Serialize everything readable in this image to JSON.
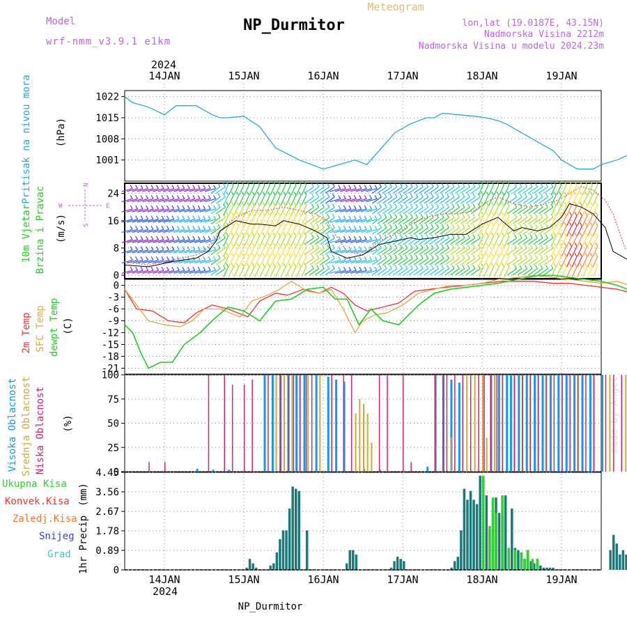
{
  "header": {
    "model_label": "Model",
    "model_name": "wrf-nmm_v3.9.1 e1km",
    "station": "NP_Durmitor",
    "product": "Meteogram",
    "lonlat": "lon,lat (19.0187E, 43.15N)",
    "elevation": "Nadmorska Visina 2212m",
    "model_elevation": "Nadmorska Visina u modelu 2024.23m"
  },
  "footer": {
    "station": "NP_Durmitor",
    "credit": "made by Angel"
  },
  "time_axis": {
    "year": "2024",
    "days": [
      "14JAN",
      "15JAN",
      "16JAN",
      "17JAN",
      "18JAN",
      "19JAN"
    ]
  },
  "colors": {
    "pressure": "#22aadd",
    "t2m": "#ee3333",
    "tsfc": "#ddaa44",
    "dewpt": "#22cc22",
    "wind_speed": "#000000",
    "gust": "#ee6666",
    "high_cloud": "#1199ee",
    "mid_cloud": "#ccaa33",
    "low_cloud": "#cc2277",
    "precip_total": "#33cc33",
    "precip_conv": "#ee3333",
    "precip_frozen": "#ee7733",
    "snow": "#3344cc",
    "hail": "#33cccc",
    "precip_main": "#1a7a7a"
  },
  "chart_data": [
    {
      "type": "line",
      "panel": "pressure",
      "ylabel": "Pritisak na nivou mora",
      "unit": "(hPa)",
      "yticks": [
        "1022",
        "1015",
        "1008",
        "1001"
      ],
      "ylim": [
        994,
        1024
      ],
      "series": [
        {
          "x": [
            0,
            0.1,
            0.3,
            0.5,
            0.65,
            0.9,
            1.1,
            1.2,
            1.3,
            1.5,
            1.7,
            1.9,
            2.05,
            2.2,
            2.5,
            2.7,
            2.9,
            3.05,
            3.2,
            3.4,
            3.6,
            3.8,
            3.9,
            4.0,
            4.2,
            4.4,
            4.55,
            4.7,
            4.8,
            5.0,
            5.2,
            5.4,
            5.5,
            5.7,
            5.9,
            6.0,
            6.2,
            6.45,
            6.55
          ],
          "values": [
            1022,
            1020,
            1018.5,
            1016,
            1019,
            1019,
            1016,
            1015,
            1015,
            1015.5,
            1012,
            1005,
            1003,
            1001,
            998,
            999.5,
            1001,
            999.5,
            1004,
            1010,
            1013,
            1015,
            1015,
            1016.5,
            1016,
            1015.5,
            1015,
            1014,
            1013,
            1010,
            1007,
            1004,
            1001,
            998,
            998,
            999.5,
            1001,
            1004,
            1007
          ]
        }
      ]
    },
    {
      "type": "line",
      "panel": "wind",
      "ylabel": "10m Vjetar Brzina i Pravac",
      "unit": "(m/s)",
      "yticks": [
        "24",
        "16",
        "8",
        "0"
      ],
      "ylim": [
        -1,
        27
      ],
      "compass": {
        "n": "N",
        "s": "S",
        "e": "E",
        "w": "W"
      },
      "speed": {
        "x": [
          0,
          0.3,
          0.6,
          0.9,
          1.05,
          1.15,
          1.2,
          1.4,
          1.6,
          1.7,
          1.9,
          2.0,
          2.2,
          2.4,
          2.55,
          2.6,
          2.8,
          3.0,
          3.2,
          3.4,
          3.6,
          3.7,
          3.9,
          4.1,
          4.3,
          4.5,
          4.7,
          4.9,
          5.0,
          5.2,
          5.35,
          5.5,
          5.6,
          5.75,
          5.9,
          6.05,
          6.15,
          6.3,
          6.55
        ],
        "values": [
          3,
          2.5,
          4,
          5,
          7,
          10,
          13,
          16,
          15,
          15,
          14.5,
          16,
          15,
          13,
          11,
          7,
          5,
          6,
          9,
          10,
          11,
          10.5,
          11,
          12,
          12,
          15,
          17,
          13,
          14,
          13,
          14,
          17,
          21,
          20,
          18,
          14,
          7,
          5,
          2
        ]
      },
      "gust": {
        "x": [
          0,
          0.3,
          0.5,
          0.7,
          0.9,
          1.0,
          1.1,
          1.25,
          1.4,
          1.6,
          1.8,
          2.0,
          2.2,
          2.4,
          2.55,
          2.65,
          2.8,
          3.0,
          3.2,
          3.4,
          3.6,
          3.8,
          4.0,
          4.2,
          4.4,
          4.6,
          4.7,
          4.9,
          5.1,
          5.3,
          5.45,
          5.6,
          5.75,
          5.9,
          6.05,
          6.15,
          6.3,
          6.55
        ],
        "values": [
          4,
          3,
          4,
          5,
          6,
          7,
          10,
          14,
          17,
          19,
          19,
          20,
          19,
          18,
          16,
          12,
          7,
          6,
          10,
          12,
          15,
          17,
          18,
          18,
          19,
          22,
          23,
          21,
          20,
          21,
          22,
          24,
          26,
          25,
          22,
          18,
          8,
          4
        ]
      },
      "barb_colorscale": [
        "#8822cc",
        "#2255ee",
        "#22aaee",
        "#22cccc",
        "#22cc44",
        "#aadd22",
        "#ffdd22",
        "#ff8822",
        "#ee2222"
      ]
    },
    {
      "type": "line",
      "panel": "temperature",
      "ylabel": [
        "2m Temp",
        "SFC Temp",
        "dewpt Temp"
      ],
      "unit": "(C)",
      "yticks": [
        "0",
        "-3",
        "-6",
        "-9",
        "-12",
        "-15",
        "-18",
        "-21"
      ],
      "ylim": [
        -22.5,
        1.5
      ],
      "series": [
        {
          "name": "2m Temp",
          "x": [
            0,
            0.15,
            0.35,
            0.55,
            0.75,
            0.9,
            1.1,
            1.3,
            1.55,
            1.7,
            1.9,
            2.05,
            2.25,
            2.45,
            2.6,
            2.75,
            2.9,
            3.05,
            3.25,
            3.45,
            3.65,
            3.85,
            4.05,
            4.3,
            4.5,
            4.75,
            4.95,
            5.15,
            5.4,
            5.6,
            5.8,
            6.0,
            6.2,
            6.4,
            6.55
          ],
          "values": [
            -1,
            -6,
            -6.5,
            -9,
            -9.5,
            -7,
            -5,
            -6,
            -8,
            -4,
            -2,
            -2.5,
            -1,
            -2,
            -0.5,
            -2,
            -5,
            -6.5,
            -5.5,
            -4.5,
            -1.5,
            -1,
            -0.5,
            0,
            0.5,
            1,
            1,
            1,
            0.5,
            0.5,
            0,
            -0.5,
            -1,
            -2,
            -3
          ]
        },
        {
          "name": "SFC Temp",
          "x": [
            0,
            0.15,
            0.3,
            0.5,
            0.7,
            0.85,
            1.0,
            1.2,
            1.45,
            1.6,
            1.8,
            1.95,
            2.1,
            2.3,
            2.45,
            2.6,
            2.75,
            2.9,
            3.0,
            3.15,
            3.3,
            3.5,
            3.7,
            3.9,
            4.1,
            4.3,
            4.5,
            4.7,
            4.95,
            5.15,
            5.4,
            5.6,
            5.8,
            6.0,
            6.2,
            6.35,
            6.55
          ],
          "values": [
            -1,
            -5,
            -9,
            -10,
            -10.5,
            -9,
            -6,
            -6,
            -8,
            -4,
            -2.5,
            -1,
            1,
            -1.5,
            -2,
            -1,
            -6,
            -12,
            -9,
            -7.5,
            -7,
            -5,
            -2,
            -1,
            0,
            0,
            0.5,
            1.5,
            2,
            2.5,
            2,
            1.5,
            1,
            0.5,
            1,
            0,
            -1
          ]
        },
        {
          "name": "dewpt Temp",
          "x": [
            0,
            0.1,
            0.2,
            0.3,
            0.45,
            0.6,
            0.75,
            0.95,
            1.1,
            1.3,
            1.5,
            1.7,
            1.9,
            2.1,
            2.3,
            2.5,
            2.65,
            2.8,
            2.95,
            3.1,
            3.25,
            3.45,
            3.7,
            3.9,
            4.1,
            4.3,
            4.5,
            4.7,
            4.95,
            5.2,
            5.4,
            5.6,
            5.8,
            6.0,
            6.2,
            6.4,
            6.55
          ],
          "values": [
            -10,
            -12,
            -17,
            -21,
            -19.5,
            -19.5,
            -15,
            -12,
            -9,
            -5.5,
            -6.5,
            -9,
            -4,
            -3.5,
            -1,
            -0.5,
            -3.5,
            -3.5,
            -10,
            -6,
            -9,
            -10,
            -5,
            -2,
            -1,
            -0.5,
            0,
            0.5,
            1.5,
            2.5,
            2.5,
            2,
            1.5,
            1,
            0,
            -1.5,
            -4
          ]
        }
      ]
    },
    {
      "type": "bar",
      "panel": "cloud",
      "ylabel": [
        "Visoka Oblacnost",
        "Srednja Oblacnost",
        "Niska Oblacnost"
      ],
      "unit": "(%)",
      "yticks": [
        "100",
        "75",
        "50",
        "25",
        "0"
      ],
      "ylim": [
        0,
        100
      ],
      "series": [
        {
          "name": "Visoka Oblacnost",
          "x": [
            0.9,
            1.1,
            1.3,
            1.75,
            1.85,
            1.95,
            2.05,
            2.15,
            2.25,
            2.4,
            2.55,
            2.65,
            2.75,
            3.0,
            3.2,
            3.8,
            3.9,
            4.0,
            4.1,
            4.2,
            4.6,
            4.7,
            4.8,
            4.85,
            4.95,
            5.05,
            5.15,
            5.25,
            5.35,
            5.45,
            5.55,
            5.65,
            5.75,
            5.85,
            6.0
          ],
          "values": [
            3,
            2,
            2,
            100,
            100,
            100,
            100,
            100,
            100,
            100,
            98,
            95,
            93,
            3,
            2,
            5,
            100,
            100,
            95,
            92,
            100,
            100,
            100,
            100,
            100,
            100,
            100,
            100,
            100,
            100,
            100,
            100,
            100,
            100,
            100
          ]
        },
        {
          "name": "Srednja Oblacnost",
          "x": [
            1.9,
            2.0,
            2.1,
            2.2,
            2.3,
            2.45,
            2.9,
            2.95,
            3.0,
            3.05,
            3.1,
            4.1,
            4.3,
            4.4,
            4.5,
            4.55,
            4.65,
            4.75,
            4.9,
            5.0,
            5.1,
            5.2,
            5.3,
            5.5,
            5.7,
            5.9,
            6.1,
            6.3,
            6.5
          ],
          "values": [
            100,
            100,
            100,
            100,
            100,
            100,
            60,
            75,
            70,
            60,
            30,
            35,
            100,
            100,
            100,
            35,
            100,
            100,
            100,
            100,
            100,
            100,
            100,
            100,
            100,
            100,
            100,
            100,
            100
          ]
        },
        {
          "name": "Niska Oblacnost",
          "x": [
            0.3,
            0.5,
            1.05,
            1.25,
            1.35,
            1.5,
            1.6,
            1.8,
            1.95,
            2.05,
            2.12,
            2.2,
            2.28,
            2.35,
            2.6,
            2.75,
            2.85,
            3.2,
            3.3,
            3.5,
            3.6,
            3.9,
            4.0,
            4.05,
            4.15,
            4.25,
            4.35,
            4.45,
            4.52,
            4.6,
            4.68,
            4.75,
            4.9,
            5.0,
            5.1,
            5.2,
            5.3,
            5.4,
            5.5,
            5.6,
            5.7,
            5.8,
            5.9,
            6.05,
            6.15,
            6.25,
            6.35,
            6.45
          ],
          "values": [
            10,
            10,
            100,
            100,
            90,
            90,
            95,
            100,
            100,
            100,
            100,
            100,
            100,
            100,
            100,
            100,
            100,
            100,
            100,
            100,
            10,
            100,
            100,
            100,
            100,
            100,
            100,
            100,
            100,
            100,
            100,
            100,
            100,
            100,
            100,
            100,
            100,
            100,
            100,
            100,
            100,
            100,
            100,
            100,
            100,
            100,
            100,
            100
          ]
        }
      ]
    },
    {
      "type": "bar",
      "panel": "precip",
      "ylabel": "1hr Precip",
      "unit": "(mm)",
      "legend": [
        "Ukupna Kisa",
        "Konvek.Kisa",
        "Zaledj.Kisa",
        "Snijeg",
        "Grad"
      ],
      "yticks": [
        "4.45",
        "3.56",
        "2.67",
        "1.78",
        "0.89",
        "0"
      ],
      "ylim": [
        0,
        4.45
      ],
      "series": [
        {
          "name": "1hr Precip",
          "x": [
            1.52,
            1.56,
            1.6,
            1.64,
            1.82,
            1.86,
            1.9,
            1.94,
            1.98,
            2.02,
            2.06,
            2.1,
            2.14,
            2.18,
            2.28,
            2.78,
            2.82,
            2.86,
            2.9,
            3.34,
            3.38,
            3.42,
            3.46,
            3.5,
            4.1,
            4.14,
            4.18,
            4.22,
            4.26,
            4.3,
            4.34,
            4.38,
            4.42,
            4.46,
            4.5,
            4.54,
            4.58,
            4.62,
            4.66,
            4.7,
            4.74,
            4.78,
            4.82,
            4.86,
            4.9,
            4.94,
            4.98,
            5.02,
            5.06,
            5.1,
            5.14,
            5.18,
            5.22,
            5.26,
            5.3,
            5.34,
            5.38,
            6.1,
            6.14,
            6.18,
            6.22,
            6.26,
            6.3,
            6.34,
            6.38,
            6.42,
            6.46,
            6.5
          ],
          "values": [
            0.1,
            0.5,
            0.3,
            0.1,
            0.2,
            0.3,
            0.8,
            1.4,
            1.8,
            1.8,
            2.8,
            3.8,
            3.7,
            3.6,
            1.8,
            0.3,
            0.9,
            0.9,
            0.7,
            0.1,
            0.4,
            0.6,
            0.5,
            0.4,
            0.1,
            0.4,
            0.6,
            1.8,
            3.7,
            3.2,
            3.6,
            3.2,
            3.0,
            4.3,
            2.6,
            3.4,
            1.8,
            2.0,
            3.3,
            2.6,
            2.5,
            3.4,
            1.0,
            2.8,
            1.0,
            0.9,
            0.8,
            0.5,
            0.9,
            0.4,
            0.3,
            0.5,
            0.2,
            0.1,
            0.1,
            0.1,
            0.1,
            0.9,
            1.6,
            1.2,
            0.7,
            0.9,
            0.7,
            0.2,
            0.9,
            0.1,
            1.6,
            0.4
          ]
        },
        {
          "name": "Ukupna Kisa",
          "x": [
            4.5,
            4.58,
            4.62,
            4.66,
            4.74,
            4.82,
            4.9,
            4.98,
            5.02,
            5.06,
            5.12,
            5.18
          ],
          "values": [
            4.3,
            2.0,
            3.3,
            2.6,
            3.4,
            1.0,
            0.9,
            0.8,
            0.5,
            0.9,
            0.5,
            0.5
          ]
        }
      ]
    }
  ]
}
